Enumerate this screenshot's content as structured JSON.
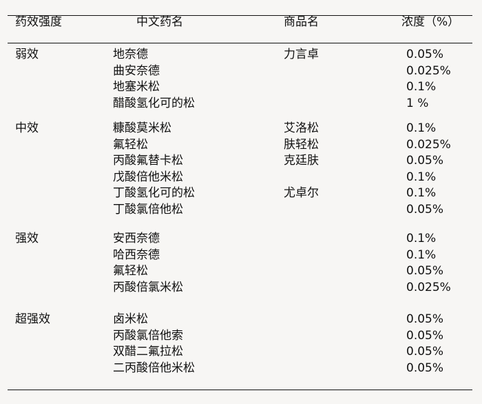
{
  "headers": {
    "potency": "药效强度",
    "chinese_name": "中文药名",
    "brand_name": "商品名",
    "concentration": "浓度（%）"
  },
  "groups": [
    {
      "potency": "弱效",
      "rows": [
        {
          "name": "地奈德",
          "brand": "力言卓",
          "conc": "0.05%"
        },
        {
          "name": "曲安奈德",
          "brand": "",
          "conc": "0.025%"
        },
        {
          "name": "地塞米松",
          "brand": "",
          "conc": "0.1%"
        },
        {
          "name": "醋酸氢化可的松",
          "brand": "",
          "conc": "1 %"
        }
      ]
    },
    {
      "potency": "中效",
      "rows": [
        {
          "name": "糠酸莫米松",
          "brand": "艾洛松",
          "conc": "0.1%"
        },
        {
          "name": "氟轻松",
          "brand": "肤轻松",
          "conc": "0.025%"
        },
        {
          "name": "丙酸氟替卡松",
          "brand": "克廷肤",
          "conc": "0.05%"
        },
        {
          "name": "戊酸倍他米松",
          "brand": "",
          "conc": "0.1%"
        },
        {
          "name": "丁酸氢化可的松",
          "brand": "尤卓尔",
          "conc": "0.1%"
        },
        {
          "name": "丁酸氯倍他松",
          "brand": "",
          "conc": "0.05%"
        }
      ]
    },
    {
      "potency": "强效",
      "rows": [
        {
          "name": "安西奈德",
          "brand": "",
          "conc": "0.1%"
        },
        {
          "name": "哈西奈德",
          "brand": "",
          "conc": "0.1%"
        },
        {
          "name": "氟轻松",
          "brand": "",
          "conc": "0.05%"
        },
        {
          "name": "丙酸倍氯米松",
          "brand": "",
          "conc": "0.025%"
        }
      ]
    },
    {
      "potency": "超强效",
      "rows": [
        {
          "name": "卤米松",
          "brand": "",
          "conc": "0.05%"
        },
        {
          "name": "丙酸氯倍他索",
          "brand": "",
          "conc": "0.05%"
        },
        {
          "name": "双醋二氟拉松",
          "brand": "",
          "conc": "0.05%"
        },
        {
          "name": "二丙酸倍他米松",
          "brand": "",
          "conc": "0.05%"
        }
      ]
    }
  ]
}
